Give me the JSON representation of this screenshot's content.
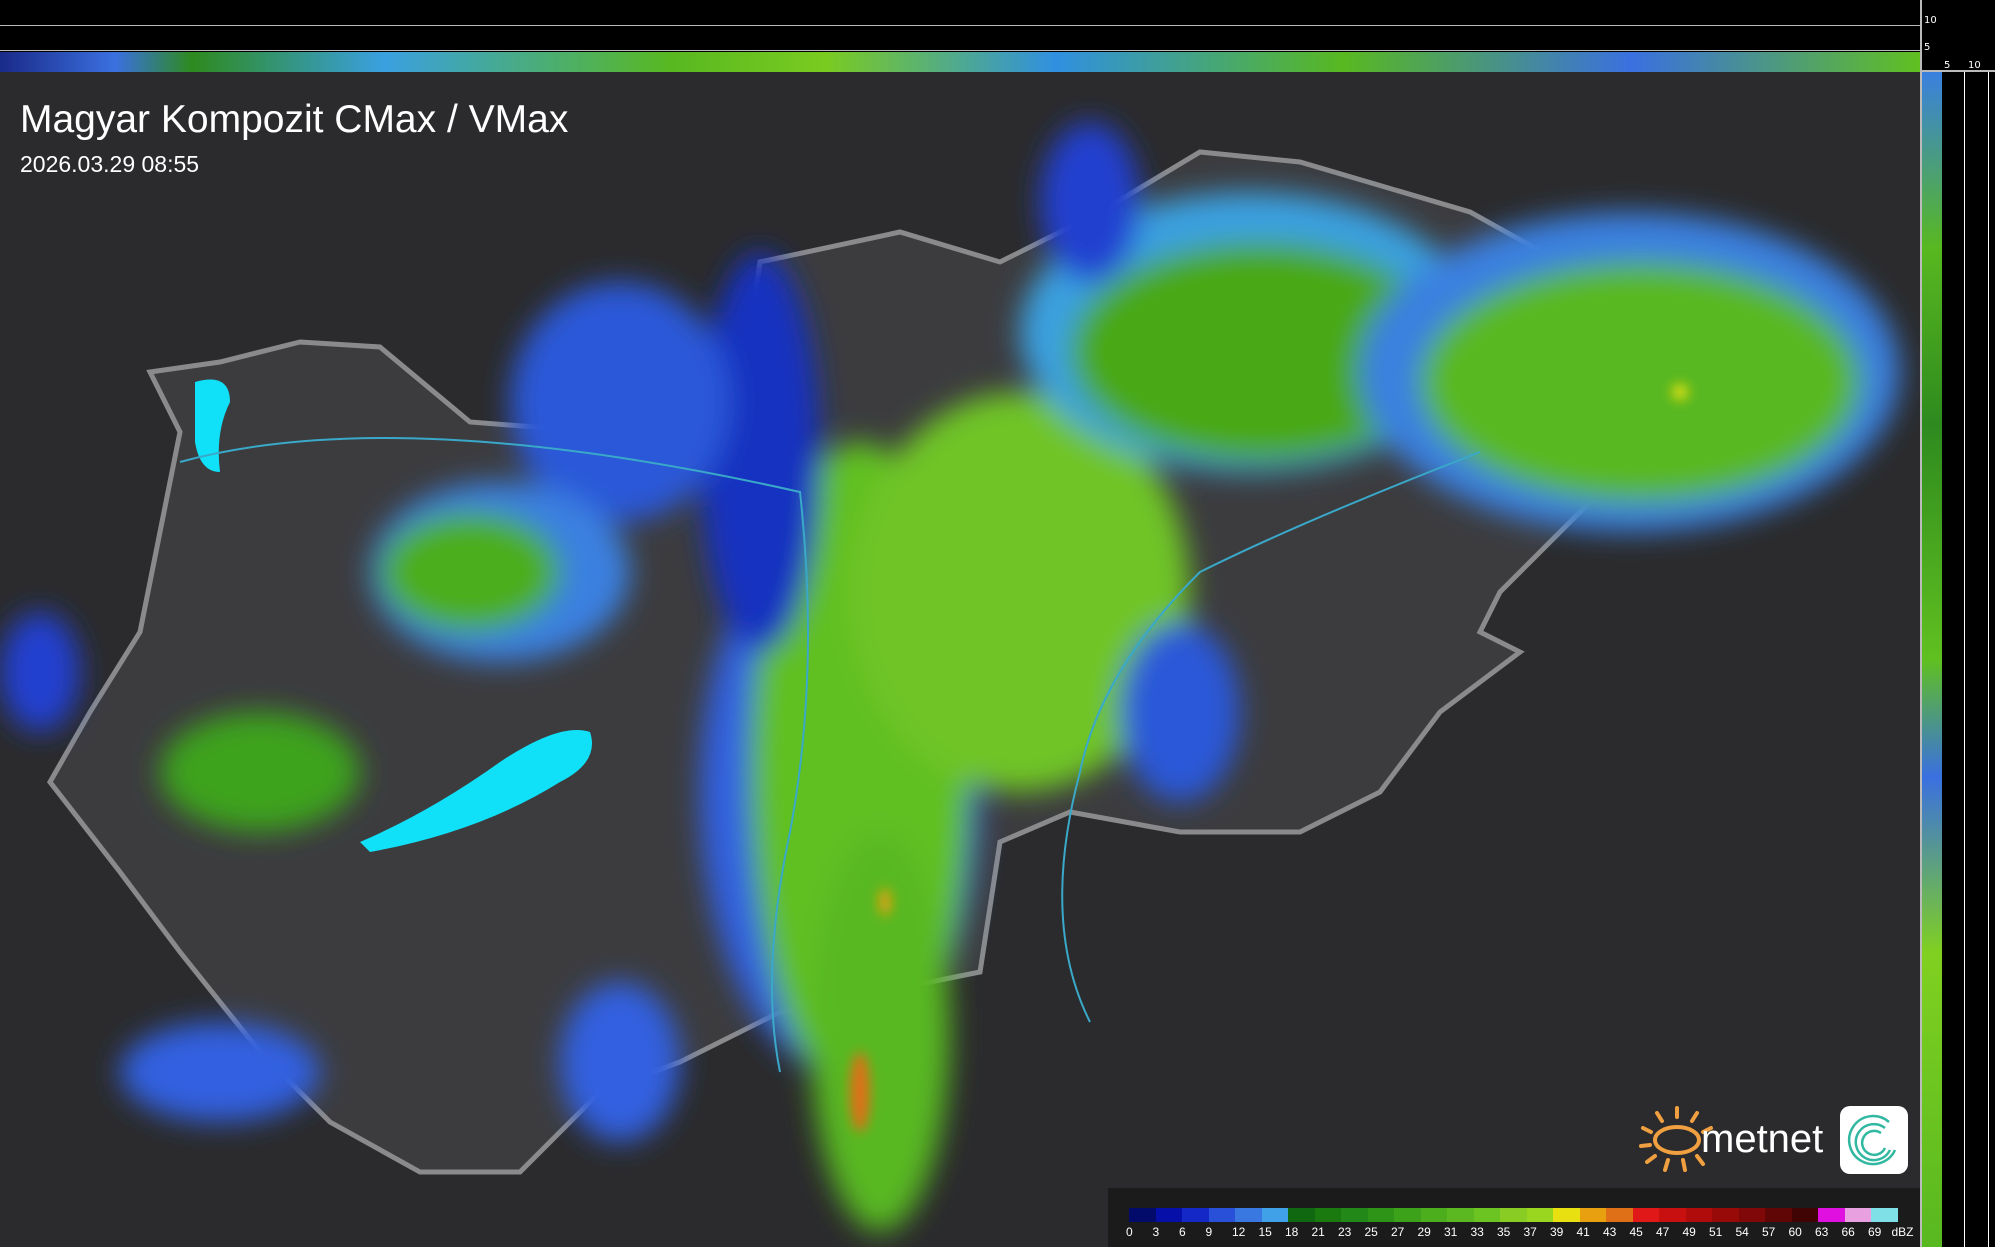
{
  "header": {
    "title": "Magyar Kompozit CMax / VMax",
    "datetime": "2026.03.29 08:55"
  },
  "side_axis": {
    "top_ticks": [
      "10",
      "5"
    ],
    "right_ticks": [
      "5",
      "10"
    ]
  },
  "logo": {
    "text": "metnet",
    "icon": "metnet-sun-logo",
    "app_icon": "spiral-app-icon",
    "accent": "#f0a040"
  },
  "legend": {
    "unit": "dBZ",
    "labels": [
      "0",
      "3",
      "6",
      "9",
      "12",
      "15",
      "18",
      "21",
      "23",
      "25",
      "27",
      "29",
      "31",
      "33",
      "35",
      "37",
      "39",
      "41",
      "43",
      "45",
      "47",
      "49",
      "51",
      "54",
      "57",
      "60",
      "63",
      "66",
      "69"
    ],
    "colors": [
      "#020a6a",
      "#0610a8",
      "#1428c8",
      "#2850d8",
      "#3878e0",
      "#40a0e8",
      "#106810",
      "#1a7a10",
      "#228818",
      "#2e9418",
      "#3ca21a",
      "#4cae1c",
      "#5cb820",
      "#6cc422",
      "#88cc24",
      "#9ad620",
      "#e8e010",
      "#e8a010",
      "#e07018",
      "#e01818",
      "#c81010",
      "#b00c0c",
      "#980a08",
      "#800808",
      "#600606",
      "#400404",
      "#e010e0",
      "#e8a0e0",
      "#80e0e8"
    ]
  }
}
